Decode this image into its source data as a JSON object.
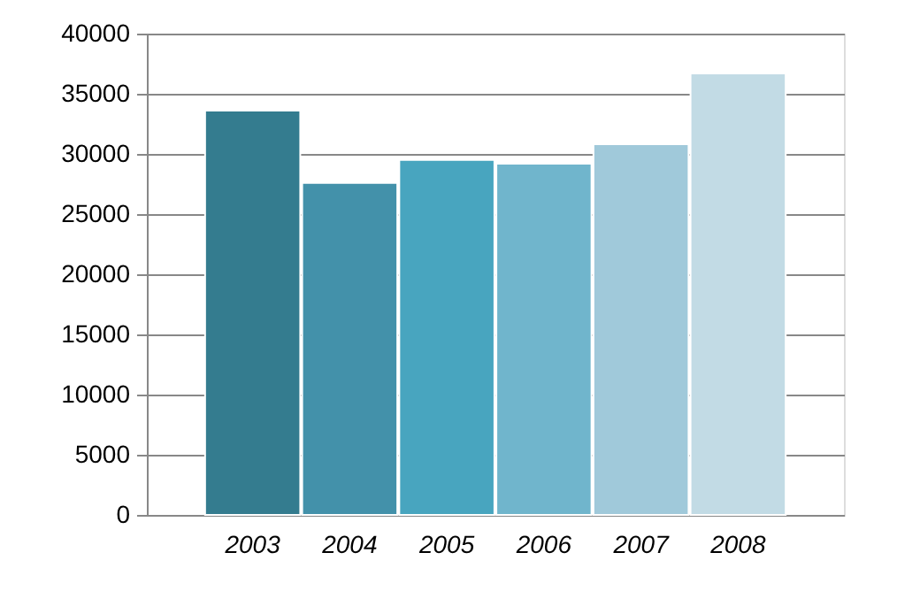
{
  "chart_data": {
    "type": "bar",
    "categories": [
      "2003",
      "2004",
      "2005",
      "2006",
      "2007",
      "2008"
    ],
    "values": [
      33600,
      27600,
      29500,
      29200,
      30800,
      36700
    ],
    "colors": [
      "#347c8f",
      "#4391aa",
      "#48a5bf",
      "#70b5cc",
      "#a0c9da",
      "#c2dbe5"
    ],
    "ylim": [
      0,
      40000
    ],
    "yticks": [
      0,
      5000,
      10000,
      15000,
      20000,
      25000,
      30000,
      35000,
      40000
    ],
    "grid": "y"
  }
}
